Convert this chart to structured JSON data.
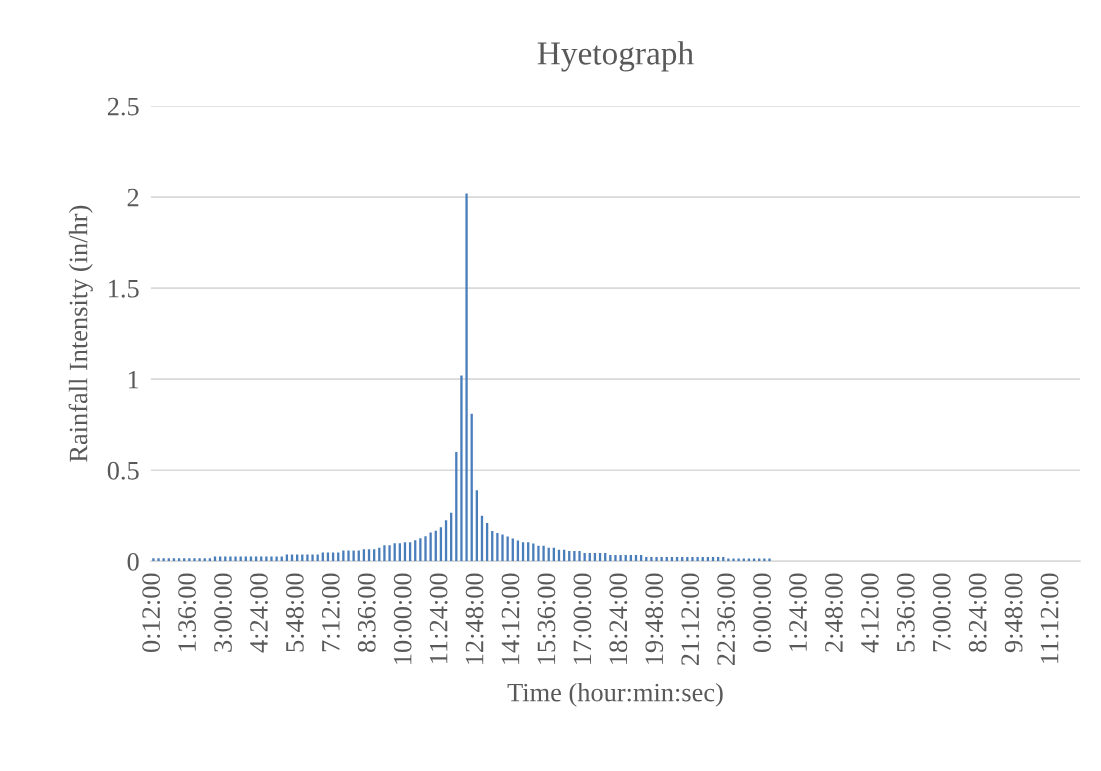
{
  "chart_data": {
    "type": "bar",
    "title": "Hyetograph",
    "xlabel": "Time (hour:min:sec)",
    "ylabel": "Rainfall Intensity (in/hr)",
    "categories": [
      "0:12:00",
      null,
      null,
      null,
      null,
      null,
      null,
      "1:36:00",
      null,
      null,
      null,
      null,
      null,
      null,
      "3:00:00",
      null,
      null,
      null,
      null,
      null,
      null,
      "4:24:00",
      null,
      null,
      null,
      null,
      null,
      null,
      "5:48:00",
      null,
      null,
      null,
      null,
      null,
      null,
      "7:12:00",
      null,
      null,
      null,
      null,
      null,
      null,
      "8:36:00",
      null,
      null,
      null,
      null,
      null,
      null,
      "10:00:00",
      null,
      null,
      null,
      null,
      null,
      null,
      "11:24:00",
      null,
      null,
      null,
      null,
      null,
      null,
      "12:48:00",
      null,
      null,
      null,
      null,
      null,
      null,
      "14:12:00",
      null,
      null,
      null,
      null,
      null,
      null,
      "15:36:00",
      null,
      null,
      null,
      null,
      null,
      null,
      "17:00:00",
      null,
      null,
      null,
      null,
      null,
      null,
      "18:24:00",
      null,
      null,
      null,
      null,
      null,
      null,
      "19:48:00",
      null,
      null,
      null,
      null,
      null,
      null,
      "21:12:00",
      null,
      null,
      null,
      null,
      null,
      null,
      "22:36:00",
      null,
      null,
      null,
      null,
      null,
      null,
      "0:00:00",
      null,
      null,
      null,
      null,
      null,
      null,
      "1:24:00",
      null,
      null,
      null,
      null,
      null,
      null,
      "2:48:00",
      null,
      null,
      null,
      null,
      null,
      null,
      "4:12:00",
      null,
      null,
      null,
      null,
      null,
      null,
      "5:36:00",
      null,
      null,
      null,
      null,
      null,
      null,
      "7:00:00",
      null,
      null,
      null,
      null,
      null,
      null,
      "8:24:00",
      null,
      null,
      null,
      null,
      null,
      null,
      "9:48:00",
      null,
      null,
      null,
      null,
      null,
      null,
      "11:12:00",
      null,
      null,
      null,
      null,
      null
    ],
    "values": [
      0.016,
      0.016,
      0.016,
      0.016,
      0.016,
      0.016,
      0.016,
      0.016,
      0.016,
      0.016,
      0.016,
      0.016,
      0.026,
      0.026,
      0.026,
      0.026,
      0.026,
      0.026,
      0.026,
      0.026,
      0.026,
      0.026,
      0.026,
      0.026,
      0.026,
      0.026,
      0.037,
      0.037,
      0.037,
      0.037,
      0.037,
      0.037,
      0.037,
      0.048,
      0.048,
      0.048,
      0.048,
      0.059,
      0.059,
      0.059,
      0.059,
      0.066,
      0.066,
      0.066,
      0.075,
      0.088,
      0.088,
      0.099,
      0.099,
      0.104,
      0.104,
      0.115,
      0.126,
      0.137,
      0.158,
      0.168,
      0.187,
      0.225,
      0.266,
      0.6,
      1.02,
      2.02,
      0.81,
      0.39,
      0.25,
      0.21,
      0.167,
      0.156,
      0.147,
      0.136,
      0.125,
      0.114,
      0.104,
      0.104,
      0.097,
      0.086,
      0.086,
      0.075,
      0.075,
      0.064,
      0.064,
      0.057,
      0.057,
      0.057,
      0.046,
      0.046,
      0.046,
      0.046,
      0.046,
      0.035,
      0.035,
      0.035,
      0.035,
      0.035,
      0.035,
      0.035,
      0.024,
      0.024,
      0.024,
      0.024,
      0.024,
      0.024,
      0.024,
      0.024,
      0.024,
      0.024,
      0.024,
      0.024,
      0.024,
      0.024,
      0.024,
      0.024,
      0.015,
      0.015,
      0.015,
      0.015,
      0.015,
      0.015,
      0.015,
      0.015,
      0.015,
      null,
      null,
      null,
      null,
      null,
      null,
      null,
      null,
      null,
      null,
      null,
      null,
      null,
      null,
      null,
      null,
      null,
      null,
      null,
      null,
      null,
      null,
      null,
      null,
      null,
      null,
      null,
      null,
      null,
      null,
      null,
      null,
      null,
      null,
      null,
      null,
      null,
      null,
      null,
      null,
      null,
      null,
      null,
      null,
      null,
      null,
      null,
      null,
      null,
      null,
      null,
      null,
      null,
      null,
      null,
      null,
      null,
      null,
      null,
      null
    ],
    "color": "#4a7ebb",
    "ylim": [
      0,
      2.5
    ],
    "yticks": [
      0,
      0.5,
      1,
      1.5,
      2,
      2.5
    ],
    "grid": "y",
    "legend": false
  }
}
